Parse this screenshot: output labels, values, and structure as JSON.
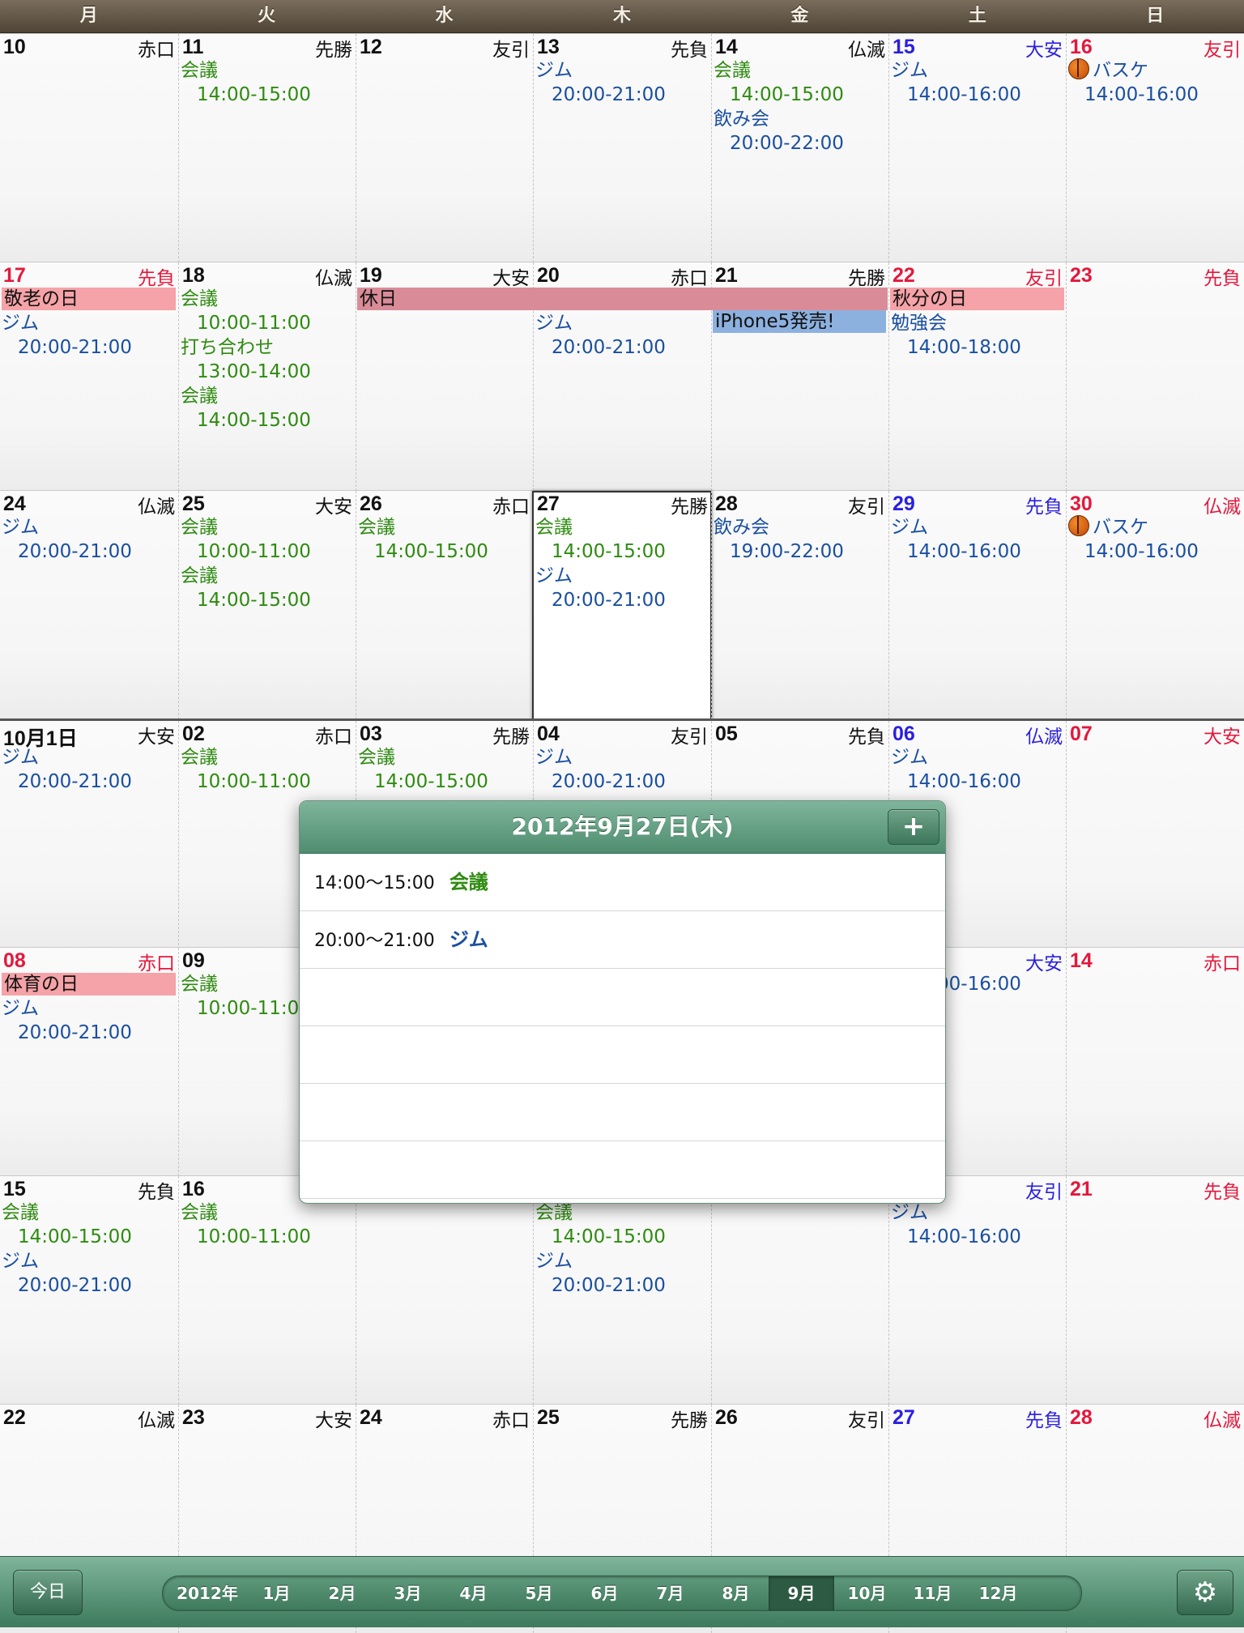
{
  "weekdays": [
    "月",
    "火",
    "水",
    "木",
    "金",
    "土",
    "日"
  ],
  "weeks": [
    {
      "days": [
        {
          "num": "10",
          "rokuyo": "赤口",
          "kind": "",
          "events": []
        },
        {
          "num": "11",
          "rokuyo": "先勝",
          "kind": "",
          "events": [
            {
              "title": "会議",
              "time": "14:00-15:00",
              "color": "green"
            }
          ]
        },
        {
          "num": "12",
          "rokuyo": "友引",
          "kind": "",
          "events": []
        },
        {
          "num": "13",
          "rokuyo": "先負",
          "kind": "",
          "events": [
            {
              "title": "ジム",
              "time": "20:00-21:00",
              "color": "blue"
            }
          ]
        },
        {
          "num": "14",
          "rokuyo": "仏滅",
          "kind": "",
          "events": [
            {
              "title": "会議",
              "time": "14:00-15:00",
              "color": "green"
            },
            {
              "title": "飲み会",
              "time": "20:00-22:00",
              "color": "blue"
            }
          ]
        },
        {
          "num": "15",
          "rokuyo": "大安",
          "kind": "sat",
          "events": [
            {
              "title": "ジム",
              "time": "14:00-16:00",
              "color": "blue"
            }
          ]
        },
        {
          "num": "16",
          "rokuyo": "友引",
          "kind": "sun",
          "events": [
            {
              "title": "バスケ",
              "time": "14:00-16:00",
              "color": "blue",
              "icon": "basketball-icon"
            }
          ]
        }
      ]
    },
    {
      "days": [
        {
          "num": "17",
          "rokuyo": "先負",
          "kind": "hol",
          "events": [
            {
              "title": "ジム",
              "time": "20:00-21:00",
              "color": "blue"
            }
          ]
        },
        {
          "num": "18",
          "rokuyo": "仏滅",
          "kind": "",
          "events": [
            {
              "title": "会議",
              "time": "10:00-11:00",
              "color": "green"
            },
            {
              "title": "打ち合わせ",
              "time": "13:00-14:00",
              "color": "green"
            },
            {
              "title": "会議",
              "time": "14:00-15:00",
              "color": "green"
            }
          ]
        },
        {
          "num": "19",
          "rokuyo": "大安",
          "kind": "",
          "events": []
        },
        {
          "num": "20",
          "rokuyo": "赤口",
          "kind": "",
          "events": [
            {
              "title": "ジム",
              "time": "20:00-21:00",
              "color": "blue"
            }
          ]
        },
        {
          "num": "21",
          "rokuyo": "先勝",
          "kind": "",
          "events": []
        },
        {
          "num": "22",
          "rokuyo": "友引",
          "kind": "hol",
          "events": [
            {
              "title": "勉強会",
              "time": "14:00-18:00",
              "color": "blue"
            }
          ]
        },
        {
          "num": "23",
          "rokuyo": "先負",
          "kind": "sun",
          "events": []
        }
      ]
    },
    {
      "days": [
        {
          "num": "24",
          "rokuyo": "仏滅",
          "kind": "",
          "events": [
            {
              "title": "ジム",
              "time": "20:00-21:00",
              "color": "blue"
            }
          ]
        },
        {
          "num": "25",
          "rokuyo": "大安",
          "kind": "",
          "events": [
            {
              "title": "会議",
              "time": "10:00-11:00",
              "color": "green"
            },
            {
              "title": "会議",
              "time": "14:00-15:00",
              "color": "green"
            }
          ]
        },
        {
          "num": "26",
          "rokuyo": "赤口",
          "kind": "",
          "events": [
            {
              "title": "会議",
              "time": "14:00-15:00",
              "color": "green"
            }
          ]
        },
        {
          "num": "27",
          "rokuyo": "先勝",
          "kind": "today",
          "events": [
            {
              "title": "会議",
              "time": "14:00-15:00",
              "color": "green"
            },
            {
              "title": "ジム",
              "time": "20:00-21:00",
              "color": "blue"
            }
          ]
        },
        {
          "num": "28",
          "rokuyo": "友引",
          "kind": "",
          "events": [
            {
              "title": "飲み会",
              "time": "19:00-22:00",
              "color": "blue"
            }
          ]
        },
        {
          "num": "29",
          "rokuyo": "先負",
          "kind": "sat",
          "events": [
            {
              "title": "ジム",
              "time": "14:00-16:00",
              "color": "blue"
            }
          ]
        },
        {
          "num": "30",
          "rokuyo": "仏滅",
          "kind": "sun",
          "events": [
            {
              "title": "バスケ",
              "time": "14:00-16:00",
              "color": "blue",
              "icon": "basketball-icon"
            }
          ]
        }
      ]
    },
    {
      "days": [
        {
          "num": "10月1日",
          "rokuyo": "大安",
          "kind": "",
          "events": [
            {
              "title": "ジム",
              "time": "20:00-21:00",
              "color": "blue"
            }
          ]
        },
        {
          "num": "02",
          "rokuyo": "赤口",
          "kind": "",
          "events": [
            {
              "title": "会議",
              "time": "10:00-11:00",
              "color": "green"
            }
          ]
        },
        {
          "num": "03",
          "rokuyo": "先勝",
          "kind": "",
          "events": [
            {
              "title": "会議",
              "time": "14:00-15:00",
              "color": "green"
            }
          ]
        },
        {
          "num": "04",
          "rokuyo": "友引",
          "kind": "",
          "events": [
            {
              "title": "ジム",
              "time": "20:00-21:00",
              "color": "blue"
            }
          ]
        },
        {
          "num": "05",
          "rokuyo": "先負",
          "kind": "",
          "events": []
        },
        {
          "num": "06",
          "rokuyo": "仏滅",
          "kind": "sat",
          "events": [
            {
              "title": "ジム",
              "time": "14:00-16:00",
              "color": "blue"
            }
          ]
        },
        {
          "num": "07",
          "rokuyo": "大安",
          "kind": "sun",
          "events": []
        }
      ]
    },
    {
      "days": [
        {
          "num": "08",
          "rokuyo": "赤口",
          "kind": "hol",
          "events": [
            {
              "title": "ジム",
              "time": "20:00-21:00",
              "color": "blue"
            }
          ]
        },
        {
          "num": "09",
          "rokuyo": "",
          "kind": "",
          "events": [
            {
              "title": "会議",
              "time": "10:00-11:00",
              "color": "green"
            }
          ]
        },
        {
          "num": "",
          "rokuyo": "",
          "kind": "",
          "events": []
        },
        {
          "num": "",
          "rokuyo": "",
          "kind": "",
          "events": []
        },
        {
          "num": "",
          "rokuyo": "",
          "kind": "",
          "events": []
        },
        {
          "num": "",
          "rokuyo": "大安",
          "kind": "sat",
          "events": [
            {
              "title": "",
              "time": "14:00-16:00",
              "color": "blue"
            }
          ]
        },
        {
          "num": "14",
          "rokuyo": "赤口",
          "kind": "sun",
          "events": []
        }
      ]
    },
    {
      "days": [
        {
          "num": "15",
          "rokuyo": "先負",
          "kind": "",
          "events": [
            {
              "title": "会議",
              "time": "14:00-15:00",
              "color": "green"
            },
            {
              "title": "ジム",
              "time": "20:00-21:00",
              "color": "blue"
            }
          ]
        },
        {
          "num": "16",
          "rokuyo": "",
          "kind": "",
          "events": [
            {
              "title": "会議",
              "time": "10:00-11:00",
              "color": "green"
            }
          ]
        },
        {
          "num": "",
          "rokuyo": "",
          "kind": "",
          "events": []
        },
        {
          "num": "",
          "rokuyo": "",
          "kind": "",
          "events": [
            {
              "title": "会議",
              "time": "14:00-15:00",
              "color": "green"
            },
            {
              "title": "ジム",
              "time": "20:00-21:00",
              "color": "blue"
            }
          ]
        },
        {
          "num": "",
          "rokuyo": "",
          "kind": "",
          "events": []
        },
        {
          "num": "",
          "rokuyo": "友引",
          "kind": "sat",
          "events": [
            {
              "title": "ジム",
              "time": "14:00-16:00",
              "color": "blue"
            }
          ]
        },
        {
          "num": "21",
          "rokuyo": "先負",
          "kind": "sun",
          "events": []
        }
      ]
    },
    {
      "days": [
        {
          "num": "22",
          "rokuyo": "仏滅",
          "kind": "",
          "events": []
        },
        {
          "num": "23",
          "rokuyo": "大安",
          "kind": "",
          "events": []
        },
        {
          "num": "24",
          "rokuyo": "赤口",
          "kind": "",
          "events": []
        },
        {
          "num": "25",
          "rokuyo": "先勝",
          "kind": "",
          "events": []
        },
        {
          "num": "26",
          "rokuyo": "友引",
          "kind": "",
          "events": []
        },
        {
          "num": "27",
          "rokuyo": "先負",
          "kind": "sat",
          "events": []
        },
        {
          "num": "28",
          "rokuyo": "仏滅",
          "kind": "sun",
          "events": []
        }
      ]
    }
  ],
  "bands": [
    {
      "text": "敬老の日",
      "color": "pink"
    },
    {
      "text": "休日",
      "color": "rose"
    },
    {
      "text": "iPhone5発売!",
      "color": "lblue"
    },
    {
      "text": "秋分の日",
      "color": "pink"
    },
    {
      "text": "体育の日",
      "color": "pink"
    }
  ],
  "popover": {
    "title": "2012年9月27日(木)",
    "add_label": "+",
    "items": [
      {
        "time": "14:00〜15:00",
        "title": "会議",
        "color": "green"
      },
      {
        "time": "20:00〜21:00",
        "title": "ジム",
        "color": "blue"
      }
    ]
  },
  "toolbar": {
    "today_label": "今日",
    "year_label": "2012年",
    "months": [
      "1月",
      "2月",
      "3月",
      "4月",
      "5月",
      "6月",
      "7月",
      "8月",
      "9月",
      "10月",
      "11月",
      "12月"
    ],
    "selected_month": "9月",
    "settings_icon": "gear-icon"
  },
  "colors": {
    "accent": "#4f8d6f",
    "saturday": "#2a1fe0",
    "sunday": "#e3183d",
    "event_green": "#2e8b10",
    "event_blue": "#1a4fa0"
  }
}
